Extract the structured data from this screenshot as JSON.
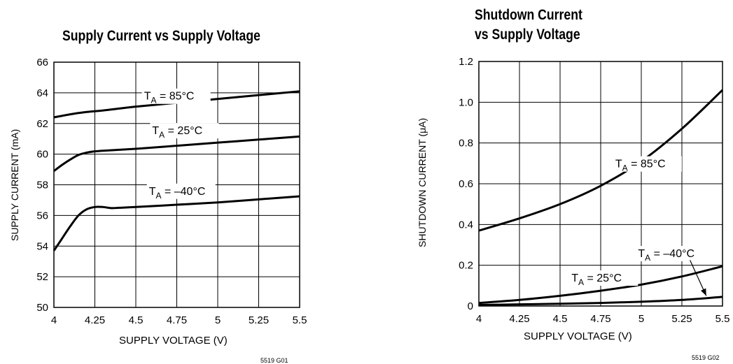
{
  "chart_data": [
    {
      "type": "line",
      "title": "Supply Current vs Supply Voltage",
      "xlabel": "SUPPLY VOLTAGE (V)",
      "ylabel": "SUPPLY CURRENT (mA)",
      "xlim": [
        4,
        5.5
      ],
      "ylim": [
        50,
        66
      ],
      "x_ticks": [
        4,
        4.25,
        4.5,
        4.75,
        5,
        5.25,
        5.5
      ],
      "x_tick_labels": [
        "4",
        "4.25",
        "4.5",
        "4.75",
        "5",
        "5.25",
        "5.5"
      ],
      "y_ticks": [
        50,
        52,
        54,
        56,
        58,
        60,
        62,
        64,
        66
      ],
      "y_tick_labels": [
        "50",
        "52",
        "54",
        "56",
        "58",
        "60",
        "62",
        "64",
        "66"
      ],
      "grid": true,
      "figure_id": "5519 G01",
      "series": [
        {
          "name": "TA = 85°C",
          "label_sub": "A",
          "label_rest": " = 85°C",
          "x": [
            4.0,
            4.1,
            4.2,
            4.3,
            4.5,
            4.75,
            5.0,
            5.25,
            5.5
          ],
          "y": [
            62.4,
            62.6,
            62.75,
            62.85,
            63.1,
            63.35,
            63.6,
            63.85,
            64.1
          ]
        },
        {
          "name": "TA = 25°C",
          "label_sub": "A",
          "label_rest": " = 25°C",
          "x": [
            4.0,
            4.05,
            4.1,
            4.15,
            4.2,
            4.25,
            4.3,
            4.5,
            4.75,
            5.0,
            5.25,
            5.5
          ],
          "y": [
            58.9,
            59.3,
            59.65,
            59.95,
            60.1,
            60.18,
            60.22,
            60.35,
            60.55,
            60.75,
            60.95,
            61.15
          ]
        },
        {
          "name": "TA = –40°C",
          "label_sub": "A",
          "label_rest": " = –40°C",
          "x": [
            4.0,
            4.05,
            4.1,
            4.15,
            4.2,
            4.25,
            4.3,
            4.35,
            4.4,
            4.5,
            4.75,
            5.0,
            5.25,
            5.5
          ],
          "y": [
            53.7,
            54.5,
            55.3,
            56.0,
            56.4,
            56.55,
            56.55,
            56.48,
            56.5,
            56.55,
            56.7,
            56.85,
            57.05,
            57.25
          ]
        }
      ]
    },
    {
      "type": "line",
      "title_lines": [
        "Shutdown Current",
        "vs Supply Voltage"
      ],
      "xlabel": "SUPPLY VOLTAGE (V)",
      "ylabel": "SHUTDOWN CURRENT (μA)",
      "xlim": [
        4,
        5.5
      ],
      "ylim": [
        0,
        1.2
      ],
      "x_ticks": [
        4,
        4.25,
        4.5,
        4.75,
        5,
        5.25,
        5.5
      ],
      "x_tick_labels": [
        "4",
        "4.25",
        "4.5",
        "4.75",
        "5",
        "5.25",
        "5.5"
      ],
      "y_ticks": [
        0,
        0.2,
        0.4,
        0.6,
        0.8,
        1.0,
        1.2
      ],
      "y_tick_labels": [
        "0",
        "0.2",
        "0.4",
        "0.6",
        "0.8",
        "1.0",
        "1.2"
      ],
      "grid": true,
      "figure_id": "5519 G02",
      "series": [
        {
          "name": "TA = 85°C",
          "label_sub": "A",
          "label_rest": " = 85°C",
          "x": [
            4.0,
            4.25,
            4.5,
            4.75,
            5.0,
            5.25,
            5.5
          ],
          "y": [
            0.37,
            0.43,
            0.5,
            0.59,
            0.71,
            0.87,
            1.06
          ]
        },
        {
          "name": "TA = 25°C",
          "label_sub": "A",
          "label_rest": " = 25°C",
          "x": [
            4.0,
            4.25,
            4.5,
            4.75,
            5.0,
            5.25,
            5.5
          ],
          "y": [
            0.015,
            0.03,
            0.05,
            0.075,
            0.105,
            0.145,
            0.195
          ]
        },
        {
          "name": "TA = –40°C",
          "label_sub": "A",
          "label_rest": " = –40°C",
          "x": [
            4.0,
            4.25,
            4.5,
            4.75,
            5.0,
            5.25,
            5.5
          ],
          "y": [
            0.005,
            0.008,
            0.011,
            0.015,
            0.021,
            0.03,
            0.045
          ]
        }
      ]
    }
  ]
}
